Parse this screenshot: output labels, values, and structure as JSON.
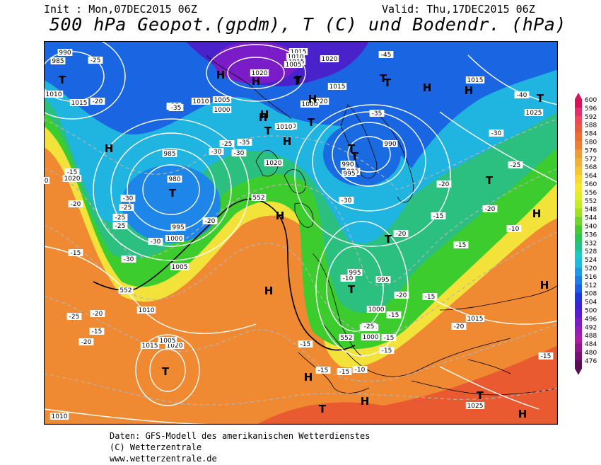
{
  "header": {
    "init": "Init : Mon,07DEC2015 06Z",
    "valid": "Valid: Thu,17DEC2015 06Z",
    "title": "500 hPa Geopot.(gpdm), T (C) und Bodendr. (hPa)"
  },
  "credits": {
    "line1": "Daten: GFS-Modell des amerikanischen Wetterdienstes",
    "line2": "(C) Wetterzentrale",
    "line3": "www.wetterzentrale.de"
  },
  "legend": {
    "values": [
      "600",
      "596",
      "592",
      "588",
      "584",
      "580",
      "576",
      "572",
      "568",
      "564",
      "560",
      "556",
      "552",
      "548",
      "544",
      "540",
      "536",
      "532",
      "528",
      "524",
      "520",
      "516",
      "512",
      "508",
      "504",
      "500",
      "496",
      "492",
      "488",
      "484",
      "480",
      "476"
    ],
    "colors": [
      "#d4145a",
      "#e0306a",
      "#e84a5a",
      "#ec5b3c",
      "#ee6e2e",
      "#f08030",
      "#f39a34",
      "#f5ae36",
      "#f7c238",
      "#f9d83a",
      "#f3e83c",
      "#e0ec30",
      "#c8e82e",
      "#a0e02a",
      "#6ed62a",
      "#44cc2e",
      "#2cc458",
      "#22c08a",
      "#24c6c0",
      "#20b8e2",
      "#1e9aea",
      "#1c7ce8",
      "#1a5ee2",
      "#2038d8",
      "#3a24d0",
      "#5a1ecc",
      "#7a1cc8",
      "#9a1ac2",
      "#b01aa8",
      "#96168a",
      "#761270",
      "#5a0e58"
    ]
  },
  "map": {
    "pressure_highs": [
      "H",
      "H",
      "H",
      "H",
      "H",
      "H",
      "H",
      "H",
      "H",
      "H",
      "H",
      "H",
      "H",
      "H",
      "H",
      "H"
    ],
    "pressure_lows": [
      "T",
      "T",
      "T",
      "T",
      "T",
      "T",
      "T",
      "T",
      "T",
      "T",
      "T",
      "T",
      "T",
      "T",
      "T",
      "T",
      "T"
    ],
    "isobar_labels": [
      "990",
      "985",
      "1010",
      "1015",
      "1020",
      "1005",
      "1000",
      "985",
      "980",
      "995",
      "1000",
      "1005",
      "1010",
      "1015",
      "1020",
      "1010",
      "1005",
      "1000",
      "995",
      "990",
      "1015",
      "1020",
      "1010",
      "1015",
      "1020",
      "1005",
      "1010",
      "1020",
      "1000",
      "995",
      "1015",
      "1020",
      "1025",
      "1015",
      "1010",
      "1005",
      "1000",
      "995",
      "990",
      "995",
      "985",
      "1020",
      "1015",
      "1025",
      "1010"
    ],
    "temp_labels": [
      "-25",
      "-20",
      "-35",
      "-30",
      "-15",
      "-25",
      "-30",
      "-25",
      "-20",
      "-15",
      "-20",
      "-25",
      "-15",
      "-20",
      "-30",
      "-25",
      "-30",
      "-35",
      "-35",
      "-30",
      "-25",
      "-20",
      "-40",
      "-45",
      "-35",
      "-30",
      "-30",
      "-25",
      "-20",
      "-20",
      "-15",
      "-20",
      "-15",
      "-10",
      "-15",
      "-15",
      "-15",
      "-20",
      "-10",
      "-15",
      "-15",
      "-15",
      "-15",
      "-10",
      "-20",
      "-25",
      "-15"
    ],
    "geopot_labels": [
      "552",
      "552",
      "552"
    ]
  },
  "colors": {
    "frame": "#000000",
    "isobar": "#ffffff",
    "isotherm": "#b4b4b4"
  }
}
